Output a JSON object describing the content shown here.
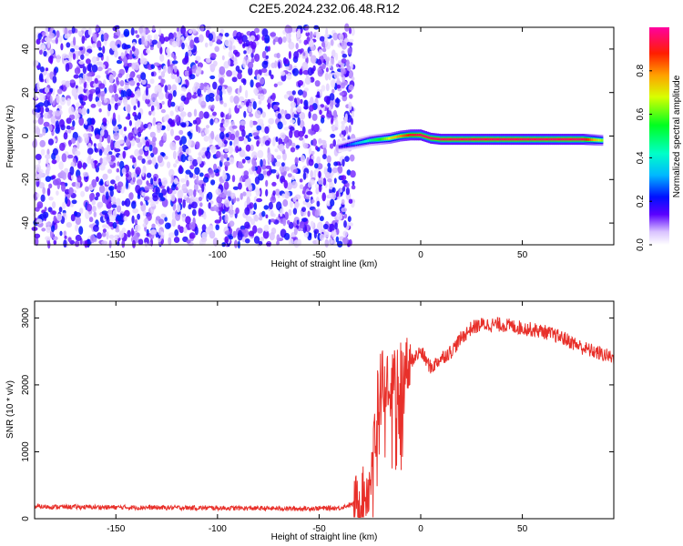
{
  "title": "C2E5.2024.232.06.48.R12",
  "colors": {
    "snr_line": "#e8302a",
    "frame": "#000000"
  },
  "chart_data": [
    {
      "type": "heatmap",
      "xlabel": "Height of straight line (km)",
      "ylabel": "Frequency (Hz)",
      "xlim": [
        -190,
        95
      ],
      "ylim": [
        -50,
        50
      ],
      "x_ticks": [
        -150,
        -100,
        -50,
        0,
        50
      ],
      "x_tick_labels": [
        "-150",
        "-100",
        "-50",
        "0",
        "50"
      ],
      "y_ticks": [
        -40,
        -20,
        0,
        20,
        40
      ],
      "y_tick_labels": [
        "-40",
        "-20",
        "0",
        "20",
        "40"
      ],
      "noise_region_x": [
        -190,
        -33
      ],
      "ridge": [
        {
          "x": -40,
          "freq": -5,
          "amp": 0.15
        },
        {
          "x": -35,
          "freq": -4,
          "amp": 0.25
        },
        {
          "x": -30,
          "freq": -3,
          "amp": 0.35
        },
        {
          "x": -25,
          "freq": -2,
          "amp": 0.45
        },
        {
          "x": -20,
          "freq": -1.5,
          "amp": 0.55
        },
        {
          "x": -15,
          "freq": -1,
          "amp": 0.7
        },
        {
          "x": -10,
          "freq": 0,
          "amp": 0.8
        },
        {
          "x": -5,
          "freq": 0.5,
          "amp": 0.9
        },
        {
          "x": 0,
          "freq": 0.5,
          "amp": 0.95
        },
        {
          "x": 5,
          "freq": -1,
          "amp": 0.95
        },
        {
          "x": 10,
          "freq": -1.5,
          "amp": 0.95
        },
        {
          "x": 20,
          "freq": -1.5,
          "amp": 0.95
        },
        {
          "x": 40,
          "freq": -1.5,
          "amp": 0.95
        },
        {
          "x": 60,
          "freq": -1.5,
          "amp": 0.95
        },
        {
          "x": 80,
          "freq": -1.5,
          "amp": 0.95
        },
        {
          "x": 90,
          "freq": -2,
          "amp": 0.6
        }
      ],
      "colorbar": {
        "label": "Normalized spectral amplitude",
        "range": [
          0,
          1
        ],
        "ticks": [
          0.0,
          0.2,
          0.4,
          0.6,
          0.8
        ],
        "tick_labels": [
          "0.0",
          "0.2",
          "0.4",
          "0.6",
          "0.8"
        ]
      }
    },
    {
      "type": "line",
      "xlabel": "Height of straight line (km)",
      "ylabel": "SNR (10 * v/v)",
      "xlim": [
        -190,
        95
      ],
      "ylim": [
        0,
        3250
      ],
      "x_ticks": [
        -150,
        -100,
        -50,
        0,
        50
      ],
      "x_tick_labels": [
        "-150",
        "-100",
        "-50",
        "0",
        "50"
      ],
      "y_ticks": [
        0,
        1000,
        2000,
        3000
      ],
      "y_tick_labels": [
        "0",
        "1000",
        "2000",
        "3000"
      ],
      "series": [
        {
          "x": [
            -190,
            -150,
            -100,
            -60,
            -40,
            -30,
            -25,
            -22,
            -20,
            -15,
            -10,
            -5,
            0,
            5,
            10,
            15,
            20,
            25,
            30,
            40,
            50,
            60,
            70,
            80,
            90,
            95
          ],
          "values": [
            180,
            170,
            160,
            150,
            160,
            250,
            500,
            1500,
            2200,
            2000,
            2200,
            2350,
            2500,
            2250,
            2400,
            2500,
            2700,
            2850,
            2900,
            2900,
            2850,
            2800,
            2700,
            2550,
            2450,
            2400
          ]
        }
      ]
    }
  ]
}
